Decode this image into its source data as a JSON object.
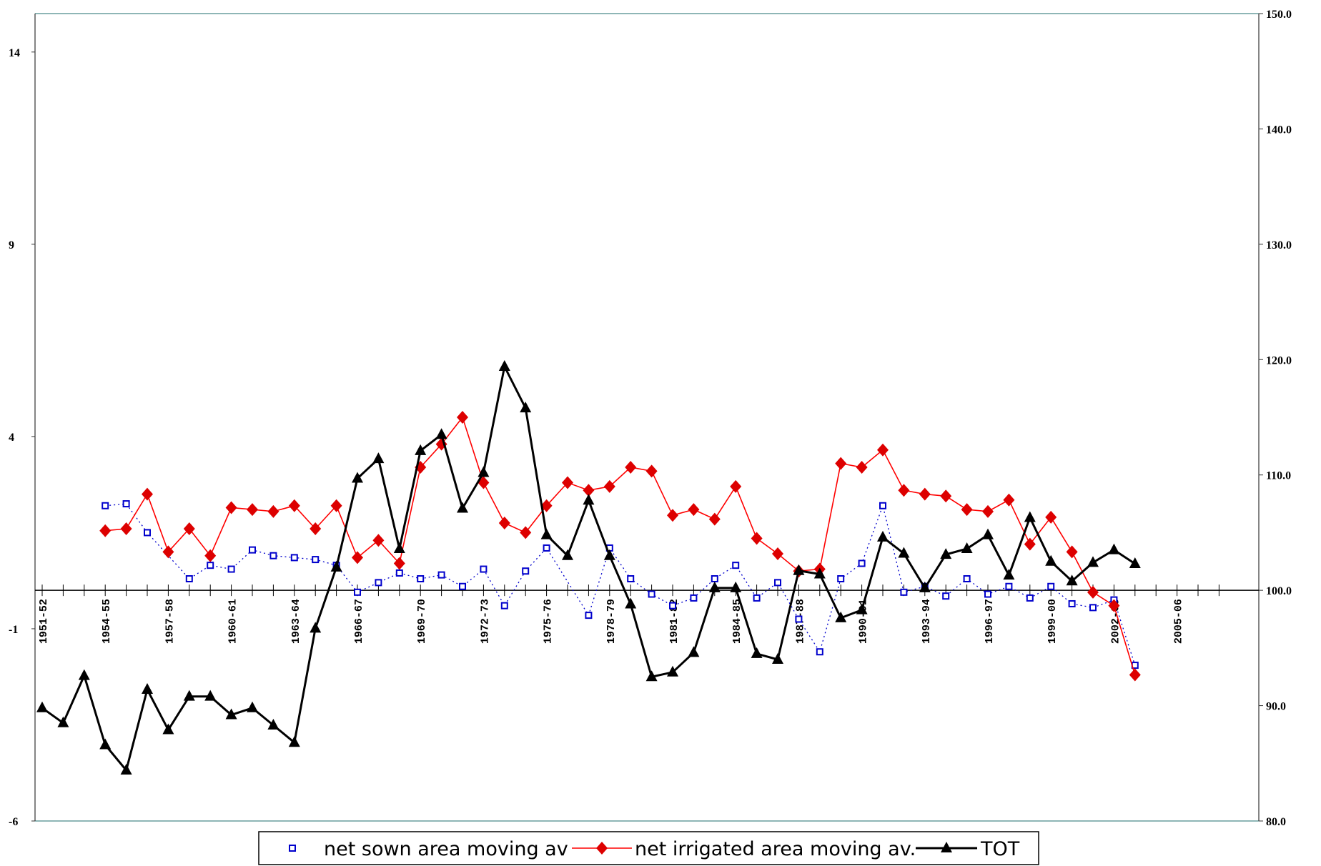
{
  "chart_data": {
    "type": "line",
    "title": "",
    "xlabel": "",
    "ylabel": "",
    "y_left": {
      "ylim": [
        -6,
        15
      ],
      "ticks": [
        -6,
        -1,
        4,
        9,
        14
      ],
      "tick_labels": [
        "-6",
        "-1",
        "4",
        "9",
        "14"
      ]
    },
    "y_right": {
      "ylim": [
        80,
        150
      ],
      "ticks": [
        80,
        90,
        100,
        110,
        120,
        130,
        140,
        150
      ],
      "tick_labels": [
        "80.0",
        "90.0",
        "100.0",
        "110.0",
        "120.0",
        "130.0",
        "140.0",
        "150.0"
      ]
    },
    "x_start_year": 1951,
    "x_end_year": 2007,
    "x_tick_labels": [
      "1951-52",
      "1954-55",
      "1957-58",
      "1960-61",
      "1963-64",
      "1966-67",
      "1969-70",
      "1972-73",
      "1975-76",
      "1978-79",
      "1981-82",
      "1984-85",
      "1987-88",
      "1990-91",
      "1993-94",
      "1996-97",
      "1999-00",
      "2002-03",
      "2005-06"
    ],
    "x_tick_years": [
      1951,
      1954,
      1957,
      1960,
      1963,
      1966,
      1969,
      1972,
      1975,
      1978,
      1981,
      1984,
      1987,
      1990,
      1993,
      1996,
      1999,
      2002,
      2005
    ],
    "legend_position": "bottom",
    "grid": false,
    "series": [
      {
        "name": "net sown area moving av",
        "axis": "left",
        "color": "#0000cc",
        "style": "dotted-square",
        "x": [
          1954,
          1955,
          1956,
          1958,
          1959,
          1960,
          1961,
          1962,
          1963,
          1964,
          1965,
          1966,
          1967,
          1968,
          1969,
          1970,
          1971,
          1972,
          1973,
          1974,
          1975,
          1977,
          1978,
          1979,
          1980,
          1981,
          1982,
          1983,
          1984,
          1985,
          1986,
          1987,
          1988,
          1989,
          1990,
          1991,
          1992,
          1993,
          1994,
          1995,
          1996,
          1997,
          1998,
          1999,
          2000,
          2001,
          2002,
          2003
        ],
        "y": [
          2.2,
          2.25,
          1.5,
          0.3,
          0.65,
          0.55,
          1.05,
          0.9,
          0.85,
          0.8,
          0.65,
          -0.05,
          0.2,
          0.45,
          0.3,
          0.4,
          0.1,
          0.55,
          -0.4,
          0.5,
          1.1,
          -0.65,
          1.1,
          0.3,
          -0.1,
          -0.4,
          -0.2,
          0.3,
          0.65,
          -0.2,
          0.2,
          -0.75,
          -1.6,
          0.3,
          0.7,
          2.2,
          -0.05,
          0.1,
          -0.15,
          0.3,
          -0.1,
          0.1,
          -0.2,
          0.1,
          -0.35,
          -0.45,
          -0.25,
          -1.95
        ]
      },
      {
        "name": "net irrigated area moving av.",
        "axis": "left",
        "color": "#ff0000",
        "marker_color": "#dd0000",
        "style": "line-diamond",
        "x": [
          1954,
          1955,
          1956,
          1957,
          1958,
          1959,
          1960,
          1961,
          1962,
          1963,
          1964,
          1965,
          1966,
          1967,
          1968,
          1969,
          1970,
          1971,
          1972,
          1973,
          1974,
          1975,
          1976,
          1977,
          1978,
          1979,
          1980,
          1981,
          1982,
          1983,
          1984,
          1985,
          1986,
          1987,
          1988,
          1989,
          1990,
          1991,
          1992,
          1993,
          1994,
          1995,
          1996,
          1997,
          1998,
          1999,
          2000,
          2001,
          2002,
          2003
        ],
        "y": [
          1.55,
          1.6,
          2.5,
          1.0,
          1.6,
          0.9,
          2.15,
          2.1,
          2.05,
          2.2,
          1.6,
          2.2,
          0.85,
          1.3,
          0.7,
          3.2,
          3.8,
          4.5,
          2.8,
          1.75,
          1.5,
          2.2,
          2.8,
          2.6,
          2.7,
          3.2,
          3.1,
          1.95,
          2.1,
          1.85,
          2.7,
          1.35,
          0.95,
          0.5,
          0.55,
          3.3,
          3.2,
          3.65,
          2.6,
          2.5,
          2.45,
          2.1,
          2.05,
          2.35,
          1.2,
          1.9,
          1.0,
          -0.05,
          -0.4,
          -2.2
        ]
      },
      {
        "name": "TOT",
        "axis": "right",
        "color": "#000000",
        "style": "line-triangle",
        "x": [
          1951,
          1952,
          1953,
          1954,
          1955,
          1956,
          1957,
          1958,
          1959,
          1960,
          1961,
          1962,
          1963,
          1964,
          1965,
          1966,
          1967,
          1968,
          1969,
          1970,
          1971,
          1972,
          1973,
          1974,
          1975,
          1976,
          1977,
          1978,
          1979,
          1980,
          1981,
          1982,
          1983,
          1984,
          1985,
          1986,
          1987,
          1988,
          1989,
          1990,
          1991,
          1992,
          1993,
          1994,
          1995,
          1996,
          1997,
          1998,
          1999,
          2000,
          2001,
          2002,
          2003
        ],
        "y": [
          89.8,
          88.5,
          92.6,
          86.6,
          84.4,
          91.4,
          87.9,
          90.8,
          90.8,
          89.2,
          89.8,
          88.3,
          86.8,
          96.7,
          102.0,
          109.7,
          111.4,
          103.6,
          112.1,
          113.5,
          107.1,
          110.2,
          119.4,
          115.8,
          104.8,
          103.0,
          107.8,
          103.0,
          98.8,
          92.5,
          92.9,
          94.6,
          100.2,
          100.2,
          94.5,
          94.0,
          101.7,
          101.4,
          97.6,
          98.3,
          104.6,
          103.2,
          100.2,
          103.1,
          103.6,
          104.8,
          101.3,
          106.3,
          102.5,
          100.8,
          102.4,
          103.5,
          102.3
        ]
      }
    ]
  }
}
